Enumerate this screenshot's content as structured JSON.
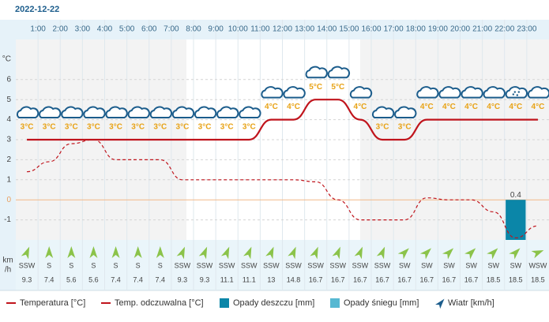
{
  "header": {
    "date": "2022-12-22"
  },
  "chart_data": {
    "type": "combo",
    "categories": [
      null,
      "1:00",
      "2:00",
      "3:00",
      "4:00",
      "5:00",
      "6:00",
      "7:00",
      "8:00",
      "9:00",
      "10:00",
      "11:00",
      "12:00",
      "13:00",
      "14:00",
      "15:00",
      "16:00",
      "17:00",
      "18:00",
      "19:00",
      "20:00",
      "21:00",
      "22:00",
      "23:00"
    ],
    "y_unit": "°C",
    "ylim": [
      -2,
      8
    ],
    "yticks": [
      -1,
      0,
      1,
      2,
      3,
      4,
      5,
      6
    ],
    "y2lim": [
      0,
      2
    ],
    "grid": true,
    "series": [
      {
        "name": "Temperatura [°C]",
        "type": "line",
        "color": "#c0141c",
        "values": [
          3,
          3,
          3,
          3,
          3,
          3,
          3,
          3,
          3,
          3,
          3,
          4,
          4,
          5,
          5,
          4,
          3,
          3,
          4,
          4,
          4,
          4,
          4,
          4
        ],
        "value_labels": [
          "3°C",
          "3°C",
          "3°C",
          "3°C",
          "3°C",
          "3°C",
          "3°C",
          "3°C",
          "3°C",
          "3°C",
          "3°C",
          "4°C",
          "4°C",
          "5°C",
          "5°C",
          "4°C",
          "3°C",
          "3°C",
          "4°C",
          "4°C",
          "4°C",
          "4°C",
          "4°C",
          "4°C"
        ]
      },
      {
        "name": "Temp. odczuwalna [°C]",
        "type": "line",
        "dashed": true,
        "color": "#c0141c",
        "values": [
          1.4,
          1.9,
          2.8,
          3.0,
          2.0,
          2.0,
          2.0,
          1.0,
          1.0,
          1.0,
          1.0,
          1.0,
          1.0,
          0.9,
          0.0,
          -1.0,
          -1.0,
          -1.0,
          0.1,
          0.0,
          0.0,
          -0.6,
          -1.9,
          -1.3
        ]
      },
      {
        "name": "Opady deszczu [mm]",
        "type": "bar",
        "axis": "y2",
        "color": "#0b86a8",
        "values": [
          0,
          0,
          0,
          0,
          0,
          0,
          0,
          0,
          0,
          0,
          0,
          0,
          0,
          0,
          0,
          0,
          0,
          0,
          0,
          0,
          0,
          0,
          0.4,
          0
        ]
      },
      {
        "name": "Opady śniegu [mm]",
        "type": "bar",
        "axis": "y2",
        "color": "#56b8d2",
        "values": [
          0,
          0,
          0,
          0,
          0,
          0,
          0,
          0,
          0,
          0,
          0,
          0,
          0,
          0,
          0,
          0,
          0,
          0,
          0,
          0,
          0,
          0,
          0,
          0
        ]
      }
    ],
    "wind": {
      "name": "Wiatr [km/h]",
      "unit": [
        "km",
        "/h"
      ],
      "color": "#8bc34a",
      "directions": [
        "SSW",
        "S",
        "S",
        "S",
        "S",
        "S",
        "S",
        "SSW",
        "SSW",
        "SSW",
        "SSW",
        "SSW",
        "SSW",
        "SSW",
        "SSW",
        "SSW",
        "SSW",
        "SW",
        "SW",
        "SW",
        "SW",
        "SW",
        "SW",
        "WSW"
      ],
      "speeds": [
        9.3,
        7.4,
        5.6,
        5.6,
        7.4,
        7.4,
        7.4,
        9.3,
        9.3,
        11.1,
        11.1,
        13,
        14.8,
        16.7,
        16.7,
        16.7,
        16.7,
        16.7,
        16.7,
        16.7,
        16.7,
        18.5,
        18.5,
        18.5
      ]
    }
  }
}
